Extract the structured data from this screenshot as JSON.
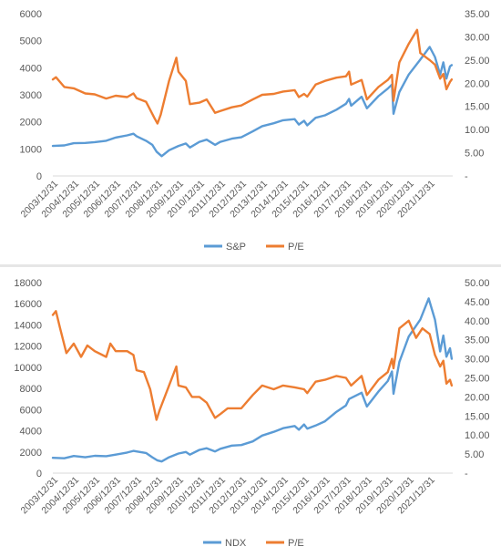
{
  "chart_data": [
    {
      "type": "line",
      "title": "",
      "xlabel": "",
      "x_ticks": [
        "2003/12/31",
        "2004/12/31",
        "2005/12/31",
        "2006/12/31",
        "2007/12/31",
        "2008/12/31",
        "2009/12/31",
        "2010/12/31",
        "2011/12/31",
        "2012/12/31",
        "2013/12/31",
        "2014/12/31",
        "2015/12/31",
        "2016/12/31",
        "2017/12/31",
        "2018/12/31",
        "2019/12/31",
        "2020/12/31",
        "2021/12/31"
      ],
      "y_left": {
        "ylim": [
          0,
          6000
        ],
        "ticks": [
          "0",
          "1000",
          "2000",
          "3000",
          "4000",
          "5000",
          "6000"
        ]
      },
      "y_right": {
        "ylim": [
          0,
          35
        ],
        "ticks": [
          "-",
          "5.00",
          "10.00",
          "15.00",
          "20.00",
          "25.00",
          "30.00",
          "35.00"
        ]
      },
      "grid": false,
      "legend_position": "bottom",
      "series": [
        {
          "name": "S&P",
          "axis": "left",
          "color": "#5B9BD5",
          "points": [
            [
              2003.95,
              1110
            ],
            [
              2004.5,
              1130
            ],
            [
              2004.95,
              1210
            ],
            [
              2005.5,
              1220
            ],
            [
              2005.95,
              1250
            ],
            [
              2006.5,
              1300
            ],
            [
              2006.95,
              1420
            ],
            [
              2007.5,
              1500
            ],
            [
              2007.8,
              1560
            ],
            [
              2007.95,
              1470
            ],
            [
              2008.4,
              1300
            ],
            [
              2008.7,
              1150
            ],
            [
              2008.9,
              900
            ],
            [
              2009.15,
              730
            ],
            [
              2009.5,
              950
            ],
            [
              2009.95,
              1110
            ],
            [
              2010.3,
              1200
            ],
            [
              2010.5,
              1050
            ],
            [
              2010.95,
              1260
            ],
            [
              2011.3,
              1340
            ],
            [
              2011.7,
              1150
            ],
            [
              2011.95,
              1260
            ],
            [
              2012.5,
              1380
            ],
            [
              2012.95,
              1430
            ],
            [
              2013.5,
              1650
            ],
            [
              2013.95,
              1840
            ],
            [
              2014.5,
              1950
            ],
            [
              2014.95,
              2060
            ],
            [
              2015.5,
              2100
            ],
            [
              2015.7,
              1900
            ],
            [
              2015.95,
              2040
            ],
            [
              2016.1,
              1870
            ],
            [
              2016.5,
              2150
            ],
            [
              2016.95,
              2240
            ],
            [
              2017.5,
              2450
            ],
            [
              2017.95,
              2670
            ],
            [
              2018.1,
              2850
            ],
            [
              2018.2,
              2600
            ],
            [
              2018.7,
              2930
            ],
            [
              2018.95,
              2500
            ],
            [
              2019.5,
              2950
            ],
            [
              2019.95,
              3230
            ],
            [
              2020.15,
              3380
            ],
            [
              2020.22,
              2300
            ],
            [
              2020.5,
              3100
            ],
            [
              2020.95,
              3750
            ],
            [
              2021.5,
              4300
            ],
            [
              2021.95,
              4770
            ],
            [
              2022.2,
              4400
            ],
            [
              2022.45,
              3750
            ],
            [
              2022.6,
              4200
            ],
            [
              2022.75,
              3600
            ],
            [
              2022.92,
              4050
            ],
            [
              2023.0,
              4100
            ]
          ]
        },
        {
          "name": "P/E",
          "axis": "right",
          "color": "#ED7D31",
          "points": [
            [
              2003.95,
              20.8
            ],
            [
              2004.1,
              21.3
            ],
            [
              2004.5,
              19.2
            ],
            [
              2004.95,
              18.9
            ],
            [
              2005.5,
              17.8
            ],
            [
              2005.95,
              17.6
            ],
            [
              2006.5,
              16.7
            ],
            [
              2006.95,
              17.3
            ],
            [
              2007.5,
              17.0
            ],
            [
              2007.8,
              17.8
            ],
            [
              2007.95,
              16.8
            ],
            [
              2008.4,
              16.0
            ],
            [
              2008.8,
              12.5
            ],
            [
              2008.95,
              11.3
            ],
            [
              2009.1,
              13.2
            ],
            [
              2009.5,
              20.5
            ],
            [
              2009.85,
              25.5
            ],
            [
              2009.95,
              22.5
            ],
            [
              2010.3,
              20.5
            ],
            [
              2010.5,
              15.5
            ],
            [
              2010.95,
              15.8
            ],
            [
              2011.3,
              16.5
            ],
            [
              2011.7,
              13.6
            ],
            [
              2011.95,
              14.0
            ],
            [
              2012.5,
              14.8
            ],
            [
              2012.95,
              15.2
            ],
            [
              2013.5,
              16.5
            ],
            [
              2013.95,
              17.5
            ],
            [
              2014.5,
              17.7
            ],
            [
              2014.95,
              18.2
            ],
            [
              2015.5,
              18.5
            ],
            [
              2015.7,
              17.0
            ],
            [
              2015.95,
              17.7
            ],
            [
              2016.1,
              17.1
            ],
            [
              2016.5,
              19.7
            ],
            [
              2016.95,
              20.5
            ],
            [
              2017.5,
              21.2
            ],
            [
              2017.95,
              21.5
            ],
            [
              2018.1,
              22.5
            ],
            [
              2018.2,
              19.7
            ],
            [
              2018.7,
              20.7
            ],
            [
              2018.95,
              16.5
            ],
            [
              2019.5,
              19.2
            ],
            [
              2019.95,
              20.7
            ],
            [
              2020.15,
              21.8
            ],
            [
              2020.22,
              16.2
            ],
            [
              2020.5,
              24.5
            ],
            [
              2020.95,
              28.5
            ],
            [
              2021.15,
              30.0
            ],
            [
              2021.35,
              31.5
            ],
            [
              2021.5,
              26.5
            ],
            [
              2021.95,
              25.0
            ],
            [
              2022.2,
              24.0
            ],
            [
              2022.45,
              21.0
            ],
            [
              2022.6,
              22.0
            ],
            [
              2022.75,
              18.7
            ],
            [
              2022.92,
              20.3
            ],
            [
              2023.0,
              20.8
            ]
          ]
        }
      ]
    },
    {
      "type": "line",
      "title": "",
      "xlabel": "",
      "x_ticks": [
        "2003/12/31",
        "2004/12/31",
        "2005/12/31",
        "2006/12/31",
        "2007/12/31",
        "2008/12/31",
        "2009/12/31",
        "2010/12/31",
        "2011/12/31",
        "2012/12/31",
        "2013/12/31",
        "2014/12/31",
        "2015/12/31",
        "2016/12/31",
        "2017/12/31",
        "2018/12/31",
        "2019/12/31",
        "2020/12/31",
        "2021/12/31"
      ],
      "y_left": {
        "ylim": [
          0,
          18000
        ],
        "ticks": [
          "0",
          "2000",
          "4000",
          "6000",
          "8000",
          "10000",
          "12000",
          "14000",
          "16000",
          "18000"
        ]
      },
      "y_right": {
        "ylim": [
          0,
          50
        ],
        "ticks": [
          "-",
          "5.00",
          "10.00",
          "15.00",
          "20.00",
          "25.00",
          "30.00",
          "35.00",
          "40.00",
          "45.00",
          "50.00"
        ]
      },
      "grid": false,
      "legend_position": "bottom",
      "series": [
        {
          "name": "NDX",
          "axis": "left",
          "color": "#5B9BD5",
          "points": [
            [
              2003.95,
              1450
            ],
            [
              2004.5,
              1400
            ],
            [
              2004.95,
              1620
            ],
            [
              2005.5,
              1500
            ],
            [
              2005.95,
              1640
            ],
            [
              2006.5,
              1600
            ],
            [
              2006.95,
              1750
            ],
            [
              2007.5,
              1950
            ],
            [
              2007.8,
              2100
            ],
            [
              2007.95,
              2050
            ],
            [
              2008.4,
              1900
            ],
            [
              2008.7,
              1500
            ],
            [
              2008.95,
              1200
            ],
            [
              2009.15,
              1100
            ],
            [
              2009.5,
              1500
            ],
            [
              2009.95,
              1850
            ],
            [
              2010.3,
              2000
            ],
            [
              2010.5,
              1750
            ],
            [
              2010.95,
              2200
            ],
            [
              2011.3,
              2350
            ],
            [
              2011.7,
              2050
            ],
            [
              2011.95,
              2300
            ],
            [
              2012.5,
              2600
            ],
            [
              2012.95,
              2650
            ],
            [
              2013.5,
              3000
            ],
            [
              2013.95,
              3550
            ],
            [
              2014.5,
              3900
            ],
            [
              2014.95,
              4250
            ],
            [
              2015.5,
              4450
            ],
            [
              2015.7,
              4100
            ],
            [
              2015.95,
              4600
            ],
            [
              2016.1,
              4200
            ],
            [
              2016.5,
              4500
            ],
            [
              2016.95,
              4900
            ],
            [
              2017.5,
              5800
            ],
            [
              2017.95,
              6400
            ],
            [
              2018.1,
              7000
            ],
            [
              2018.7,
              7600
            ],
            [
              2018.95,
              6300
            ],
            [
              2019.5,
              7700
            ],
            [
              2019.95,
              8700
            ],
            [
              2020.15,
              9600
            ],
            [
              2020.22,
              7500
            ],
            [
              2020.5,
              10500
            ],
            [
              2020.95,
              12900
            ],
            [
              2021.5,
              14500
            ],
            [
              2021.9,
              16500
            ],
            [
              2022.2,
              14500
            ],
            [
              2022.45,
              11500
            ],
            [
              2022.6,
              13000
            ],
            [
              2022.75,
              11000
            ],
            [
              2022.92,
              11800
            ],
            [
              2023.0,
              10800
            ]
          ]
        },
        {
          "name": "P/E",
          "axis": "right",
          "color": "#ED7D31",
          "points": [
            [
              2003.95,
              41.5
            ],
            [
              2004.1,
              42.5
            ],
            [
              2004.3,
              38.0
            ],
            [
              2004.6,
              31.5
            ],
            [
              2004.95,
              34.0
            ],
            [
              2005.3,
              30.5
            ],
            [
              2005.6,
              33.5
            ],
            [
              2005.95,
              32.0
            ],
            [
              2006.5,
              30.5
            ],
            [
              2006.7,
              34.0
            ],
            [
              2006.95,
              32.0
            ],
            [
              2007.5,
              32.0
            ],
            [
              2007.8,
              31.0
            ],
            [
              2007.95,
              27.0
            ],
            [
              2008.3,
              26.5
            ],
            [
              2008.6,
              22.0
            ],
            [
              2008.9,
              14.0
            ],
            [
              2009.05,
              16.5
            ],
            [
              2009.5,
              23.0
            ],
            [
              2009.85,
              28.0
            ],
            [
              2009.95,
              23.0
            ],
            [
              2010.3,
              22.5
            ],
            [
              2010.6,
              20.0
            ],
            [
              2010.95,
              20.0
            ],
            [
              2011.3,
              18.5
            ],
            [
              2011.7,
              14.5
            ],
            [
              2011.95,
              15.5
            ],
            [
              2012.3,
              17.0
            ],
            [
              2012.95,
              17.0
            ],
            [
              2013.5,
              20.5
            ],
            [
              2013.95,
              23.0
            ],
            [
              2014.5,
              22.0
            ],
            [
              2014.95,
              23.0
            ],
            [
              2015.5,
              22.5
            ],
            [
              2015.95,
              22.0
            ],
            [
              2016.1,
              21.0
            ],
            [
              2016.5,
              24.0
            ],
            [
              2016.95,
              24.5
            ],
            [
              2017.5,
              25.5
            ],
            [
              2017.95,
              25.0
            ],
            [
              2018.2,
              23.0
            ],
            [
              2018.7,
              25.5
            ],
            [
              2018.95,
              20.5
            ],
            [
              2019.5,
              24.5
            ],
            [
              2019.95,
              26.5
            ],
            [
              2020.15,
              30.0
            ],
            [
              2020.22,
              27.5
            ],
            [
              2020.5,
              38.0
            ],
            [
              2020.95,
              40.0
            ],
            [
              2021.3,
              35.5
            ],
            [
              2021.6,
              38.0
            ],
            [
              2021.95,
              36.5
            ],
            [
              2022.2,
              31.0
            ],
            [
              2022.45,
              28.0
            ],
            [
              2022.6,
              29.5
            ],
            [
              2022.75,
              23.5
            ],
            [
              2022.92,
              24.5
            ],
            [
              2023.0,
              23.0
            ]
          ]
        }
      ]
    }
  ]
}
